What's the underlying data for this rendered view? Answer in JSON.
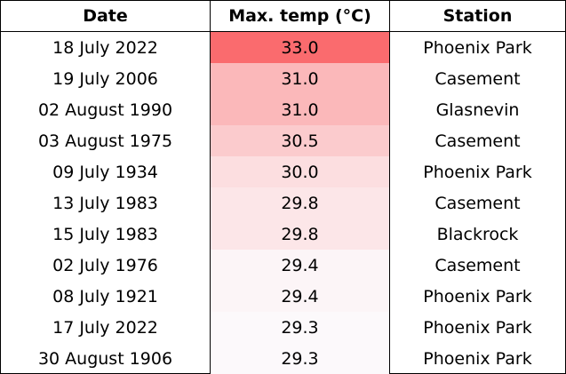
{
  "chart_data": {
    "type": "table",
    "columns": [
      "Date",
      "Max. temp (°C)",
      "Station"
    ],
    "rows": [
      {
        "date": "18 July 2022",
        "temp": "33.0",
        "station": "Phoenix Park",
        "value": 33.0
      },
      {
        "date": "19 July 2006",
        "temp": "31.0",
        "station": "Casement",
        "value": 31.0
      },
      {
        "date": "02 August 1990",
        "temp": "31.0",
        "station": "Glasnevin",
        "value": 31.0
      },
      {
        "date": "03 August 1975",
        "temp": "30.5",
        "station": "Casement",
        "value": 30.5
      },
      {
        "date": "09 July 1934",
        "temp": "30.0",
        "station": "Phoenix Park",
        "value": 30.0
      },
      {
        "date": "13 July 1983",
        "temp": "29.8",
        "station": "Casement",
        "value": 29.8
      },
      {
        "date": "15 July 1983",
        "temp": "29.8",
        "station": "Blackrock",
        "value": 29.8
      },
      {
        "date": "02 July 1976",
        "temp": "29.4",
        "station": "Casement",
        "value": 29.4
      },
      {
        "date": "08 July 1921",
        "temp": "29.4",
        "station": "Phoenix Park",
        "value": 29.4
      },
      {
        "date": "17 July 2022",
        "temp": "29.3",
        "station": "Phoenix Park",
        "value": 29.3
      },
      {
        "date": "30 August 1906",
        "temp": "29.3",
        "station": "Phoenix Park",
        "value": 29.3
      }
    ],
    "heat_colors": {
      "max": "#fa6b6e",
      "min": "#fcf9fb"
    }
  }
}
